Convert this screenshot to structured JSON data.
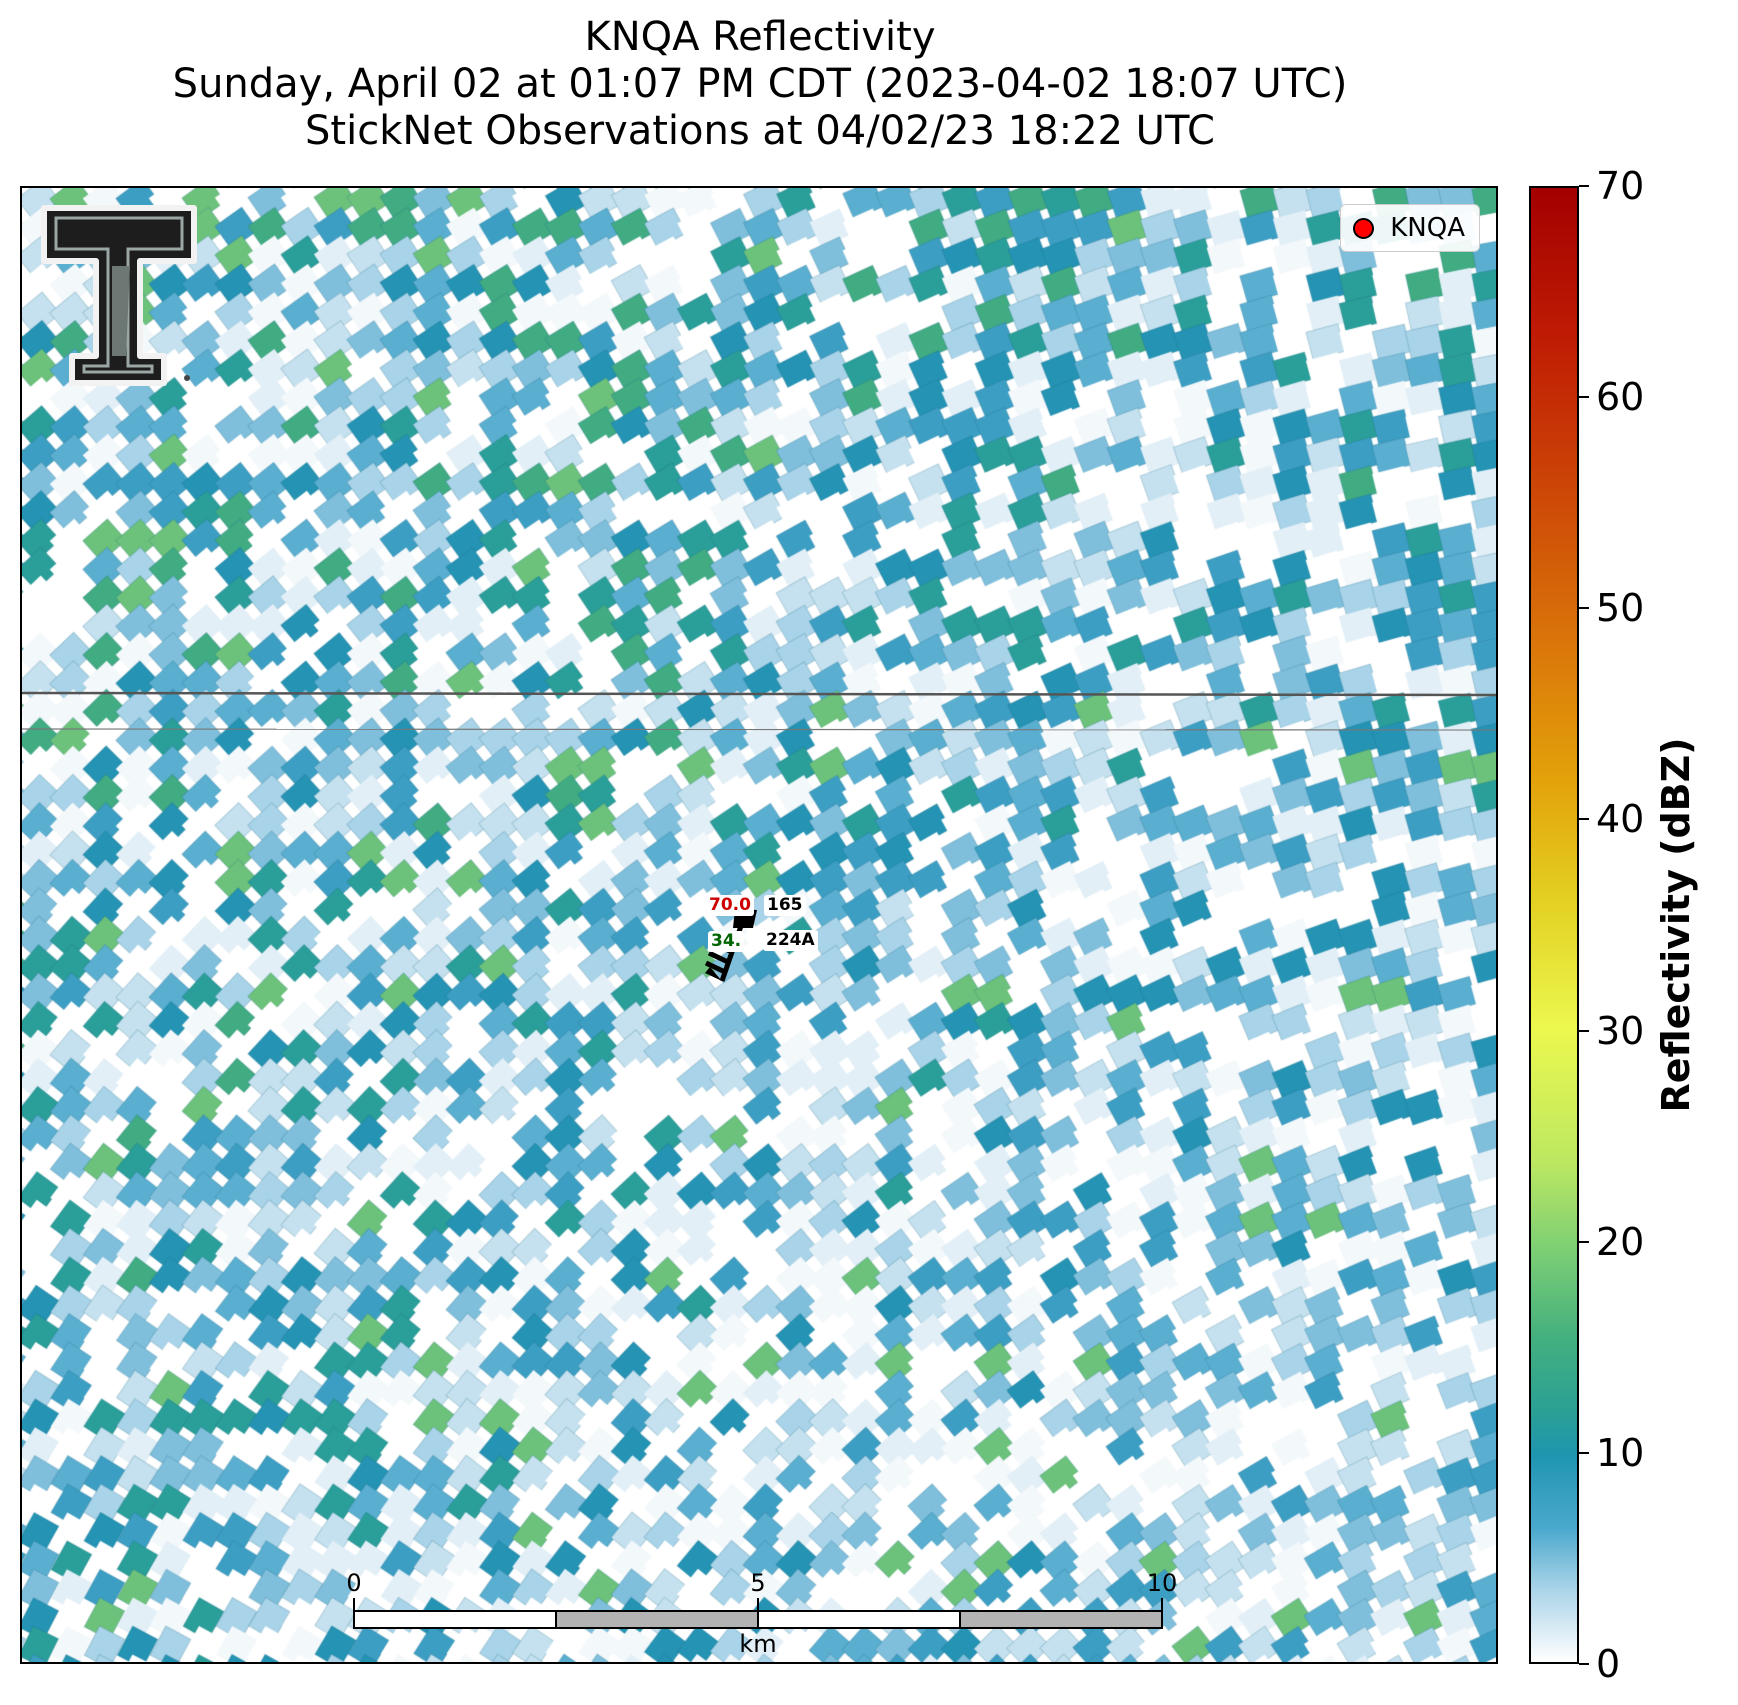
{
  "title": {
    "line1": "KNQA Reflectivity",
    "line2": "Sunday, April 02 at 01:07 PM CDT (2023-04-02 18:07 UTC)",
    "line3": "StickNet Observations at 04/02/23 18:22 UTC"
  },
  "legend": {
    "label": "KNQA",
    "marker_color": "#ff0000"
  },
  "station": {
    "id": "224A",
    "temperature": "70.0",
    "dewpoint": "34.",
    "pressure": "165",
    "temperature_color": "#cc0000",
    "dewpoint_color": "#006400"
  },
  "scale_bar": {
    "ticks": [
      "0",
      "5",
      "10"
    ],
    "unit": "km"
  },
  "colorbar": {
    "label": "Reflectivity (dBZ)",
    "ticks": [
      "0",
      "10",
      "20",
      "30",
      "40",
      "50",
      "60",
      "70"
    ],
    "range": [
      0,
      70
    ]
  },
  "logo": {
    "name": "Texas Tech Double T logo"
  }
}
